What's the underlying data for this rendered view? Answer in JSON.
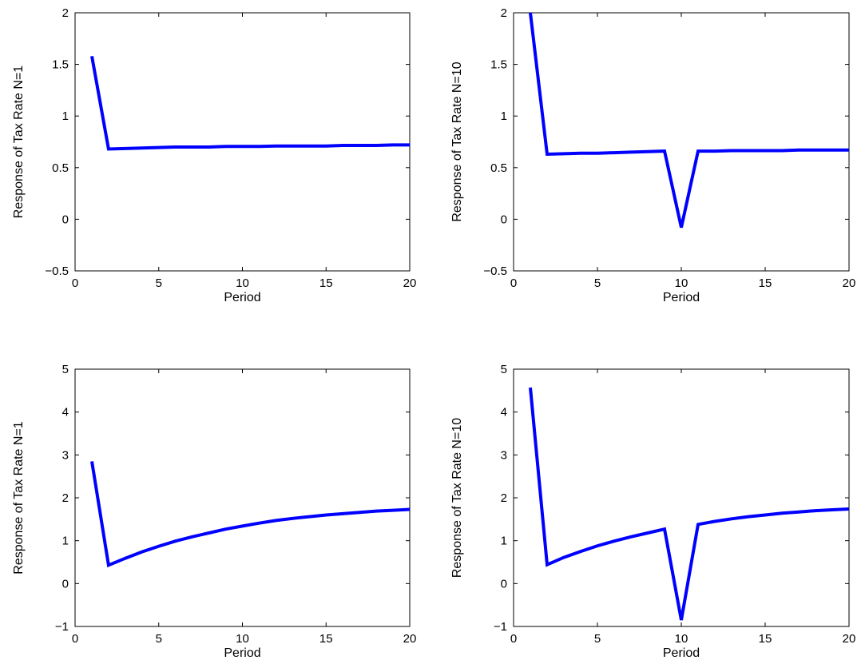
{
  "chart_data": [
    {
      "type": "line",
      "xlabel": "Period",
      "ylabel": "Response of Tax Rate N=1",
      "xlim": [
        0,
        20
      ],
      "ylim": [
        -0.5,
        2
      ],
      "xticks": [
        0,
        5,
        10,
        15,
        20
      ],
      "yticks": [
        -0.5,
        0,
        0.5,
        1,
        1.5,
        2
      ],
      "ytick_labels": [
        "−0.5",
        "0",
        "0.5",
        "1",
        "1.5",
        "2"
      ],
      "grid": false,
      "series": [
        {
          "color": "#0000ff",
          "x": [
            1,
            2,
            3,
            4,
            5,
            6,
            7,
            8,
            9,
            10,
            11,
            12,
            13,
            14,
            15,
            16,
            17,
            18,
            19,
            20
          ],
          "y": [
            1.58,
            0.68,
            0.685,
            0.69,
            0.695,
            0.7,
            0.7,
            0.7,
            0.705,
            0.705,
            0.705,
            0.71,
            0.71,
            0.71,
            0.71,
            0.715,
            0.715,
            0.715,
            0.72,
            0.72
          ]
        }
      ]
    },
    {
      "type": "line",
      "xlabel": "Period",
      "ylabel": "Response of Tax Rate N=10",
      "xlim": [
        0,
        20
      ],
      "ylim": [
        -0.5,
        2
      ],
      "xticks": [
        0,
        5,
        10,
        15,
        20
      ],
      "yticks": [
        -0.5,
        0,
        0.5,
        1,
        1.5,
        2
      ],
      "ytick_labels": [
        "−0.5",
        "0",
        "0.5",
        "1",
        "1.5",
        "2"
      ],
      "grid": false,
      "series": [
        {
          "color": "#0000ff",
          "x": [
            1,
            2,
            3,
            4,
            5,
            6,
            7,
            8,
            9,
            10,
            11,
            12,
            13,
            14,
            15,
            16,
            17,
            18,
            19,
            20
          ],
          "y": [
            2.0,
            0.63,
            0.635,
            0.64,
            0.64,
            0.645,
            0.65,
            0.655,
            0.66,
            -0.08,
            0.66,
            0.66,
            0.665,
            0.665,
            0.665,
            0.665,
            0.67,
            0.67,
            0.67,
            0.67
          ]
        }
      ]
    },
    {
      "type": "line",
      "xlabel": "Period",
      "ylabel": "Response of Tax Rate N=1",
      "xlim": [
        0,
        20
      ],
      "ylim": [
        -1,
        5
      ],
      "xticks": [
        0,
        5,
        10,
        15,
        20
      ],
      "yticks": [
        -1,
        0,
        1,
        2,
        3,
        4,
        5
      ],
      "ytick_labels": [
        "−1",
        "0",
        "1",
        "2",
        "3",
        "4",
        "5"
      ],
      "grid": false,
      "series": [
        {
          "color": "#0000ff",
          "x": [
            1,
            2,
            3,
            4,
            5,
            6,
            7,
            8,
            9,
            10,
            11,
            12,
            13,
            14,
            15,
            16,
            17,
            18,
            19,
            20
          ],
          "y": [
            2.85,
            0.43,
            0.59,
            0.74,
            0.87,
            0.99,
            1.09,
            1.18,
            1.27,
            1.34,
            1.41,
            1.47,
            1.52,
            1.56,
            1.6,
            1.63,
            1.66,
            1.69,
            1.71,
            1.73
          ]
        }
      ]
    },
    {
      "type": "line",
      "xlabel": "Period",
      "ylabel": "Response of Tax Rate N=10",
      "xlim": [
        0,
        20
      ],
      "ylim": [
        -1,
        5
      ],
      "xticks": [
        0,
        5,
        10,
        15,
        20
      ],
      "yticks": [
        -1,
        0,
        1,
        2,
        3,
        4,
        5
      ],
      "ytick_labels": [
        "−1",
        "0",
        "1",
        "2",
        "3",
        "4",
        "5"
      ],
      "grid": false,
      "series": [
        {
          "color": "#0000ff",
          "x": [
            1,
            2,
            3,
            4,
            5,
            6,
            7,
            8,
            9,
            10,
            11,
            12,
            13,
            14,
            15,
            16,
            17,
            18,
            19,
            20
          ],
          "y": [
            4.57,
            0.44,
            0.61,
            0.75,
            0.88,
            0.99,
            1.09,
            1.18,
            1.27,
            -0.85,
            1.38,
            1.45,
            1.51,
            1.56,
            1.6,
            1.64,
            1.67,
            1.7,
            1.72,
            1.74
          ]
        }
      ]
    }
  ]
}
